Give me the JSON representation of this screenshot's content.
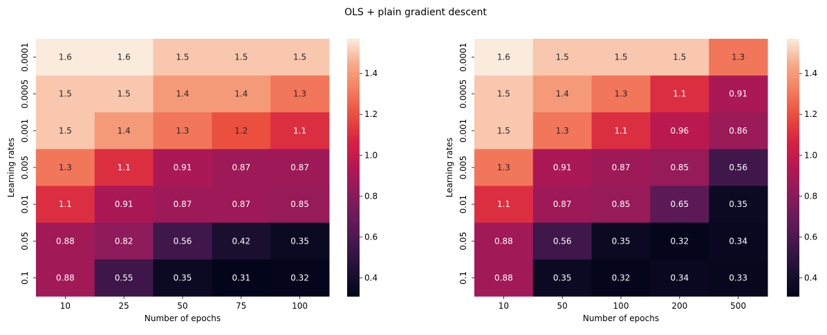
{
  "figure": {
    "title": "OLS + plain gradient descent"
  },
  "chart_data": [
    {
      "type": "heatmap",
      "xlabel": "Number of epochs",
      "ylabel": "Learning rates",
      "x_categories": [
        "10",
        "25",
        "50",
        "75",
        "100"
      ],
      "y_categories": [
        "0.0001",
        "0.0005",
        "0.001",
        "0.005",
        "0.01",
        "0.05",
        "0.1"
      ],
      "values": [
        [
          1.6,
          1.6,
          1.5,
          1.5,
          1.5
        ],
        [
          1.5,
          1.5,
          1.4,
          1.4,
          1.3
        ],
        [
          1.5,
          1.4,
          1.3,
          1.2,
          1.1
        ],
        [
          1.3,
          1.1,
          0.91,
          0.87,
          0.87
        ],
        [
          1.1,
          0.91,
          0.87,
          0.87,
          0.85
        ],
        [
          0.88,
          0.82,
          0.56,
          0.42,
          0.35
        ],
        [
          0.88,
          0.55,
          0.35,
          0.31,
          0.32
        ]
      ],
      "labels": [
        [
          "1.6",
          "1.6",
          "1.5",
          "1.5",
          "1.5"
        ],
        [
          "1.5",
          "1.5",
          "1.4",
          "1.4",
          "1.3"
        ],
        [
          "1.5",
          "1.4",
          "1.3",
          "1.2",
          "1.1"
        ],
        [
          "1.3",
          "1.1",
          "0.91",
          "0.87",
          "0.87"
        ],
        [
          "1.1",
          "0.91",
          "0.87",
          "0.87",
          "0.85"
        ],
        [
          "0.88",
          "0.82",
          "0.56",
          "0.42",
          "0.35"
        ],
        [
          "0.88",
          "0.55",
          "0.35",
          "0.31",
          "0.32"
        ]
      ],
      "vmin": 0.31,
      "vmax": 1.57,
      "colormap": "rocket",
      "colorbar_ticks": [
        "0.4",
        "0.6",
        "0.8",
        "1.0",
        "1.2",
        "1.4"
      ],
      "colorbar_tick_values": [
        0.4,
        0.6,
        0.8,
        1.0,
        1.2,
        1.4
      ]
    },
    {
      "type": "heatmap",
      "xlabel": "Number of epochs",
      "ylabel": "Learning rates",
      "x_categories": [
        "10",
        "50",
        "100",
        "200",
        "500"
      ],
      "y_categories": [
        "0.0001",
        "0.0005",
        "0.001",
        "0.005",
        "0.01",
        "0.05",
        "0.1"
      ],
      "values": [
        [
          1.6,
          1.5,
          1.5,
          1.5,
          1.3
        ],
        [
          1.5,
          1.4,
          1.3,
          1.1,
          0.91
        ],
        [
          1.5,
          1.3,
          1.1,
          0.96,
          0.86
        ],
        [
          1.3,
          0.91,
          0.87,
          0.85,
          0.56
        ],
        [
          1.1,
          0.87,
          0.85,
          0.65,
          0.35
        ],
        [
          0.88,
          0.56,
          0.35,
          0.32,
          0.34
        ],
        [
          0.88,
          0.35,
          0.32,
          0.34,
          0.33
        ]
      ],
      "labels": [
        [
          "1.6",
          "1.5",
          "1.5",
          "1.5",
          "1.3"
        ],
        [
          "1.5",
          "1.4",
          "1.3",
          "1.1",
          "0.91"
        ],
        [
          "1.5",
          "1.3",
          "1.1",
          "0.96",
          "0.86"
        ],
        [
          "1.3",
          "0.91",
          "0.87",
          "0.85",
          "0.56"
        ],
        [
          "1.1",
          "0.87",
          "0.85",
          "0.65",
          "0.35"
        ],
        [
          "0.88",
          "0.56",
          "0.35",
          "0.32",
          "0.34"
        ],
        [
          "0.88",
          "0.35",
          "0.32",
          "0.34",
          "0.33"
        ]
      ],
      "vmin": 0.31,
      "vmax": 1.57,
      "colormap": "rocket",
      "colorbar_ticks": [
        "0.4",
        "0.6",
        "0.8",
        "1.0",
        "1.2",
        "1.4"
      ],
      "colorbar_tick_values": [
        0.4,
        0.6,
        0.8,
        1.0,
        1.2,
        1.4
      ]
    }
  ]
}
